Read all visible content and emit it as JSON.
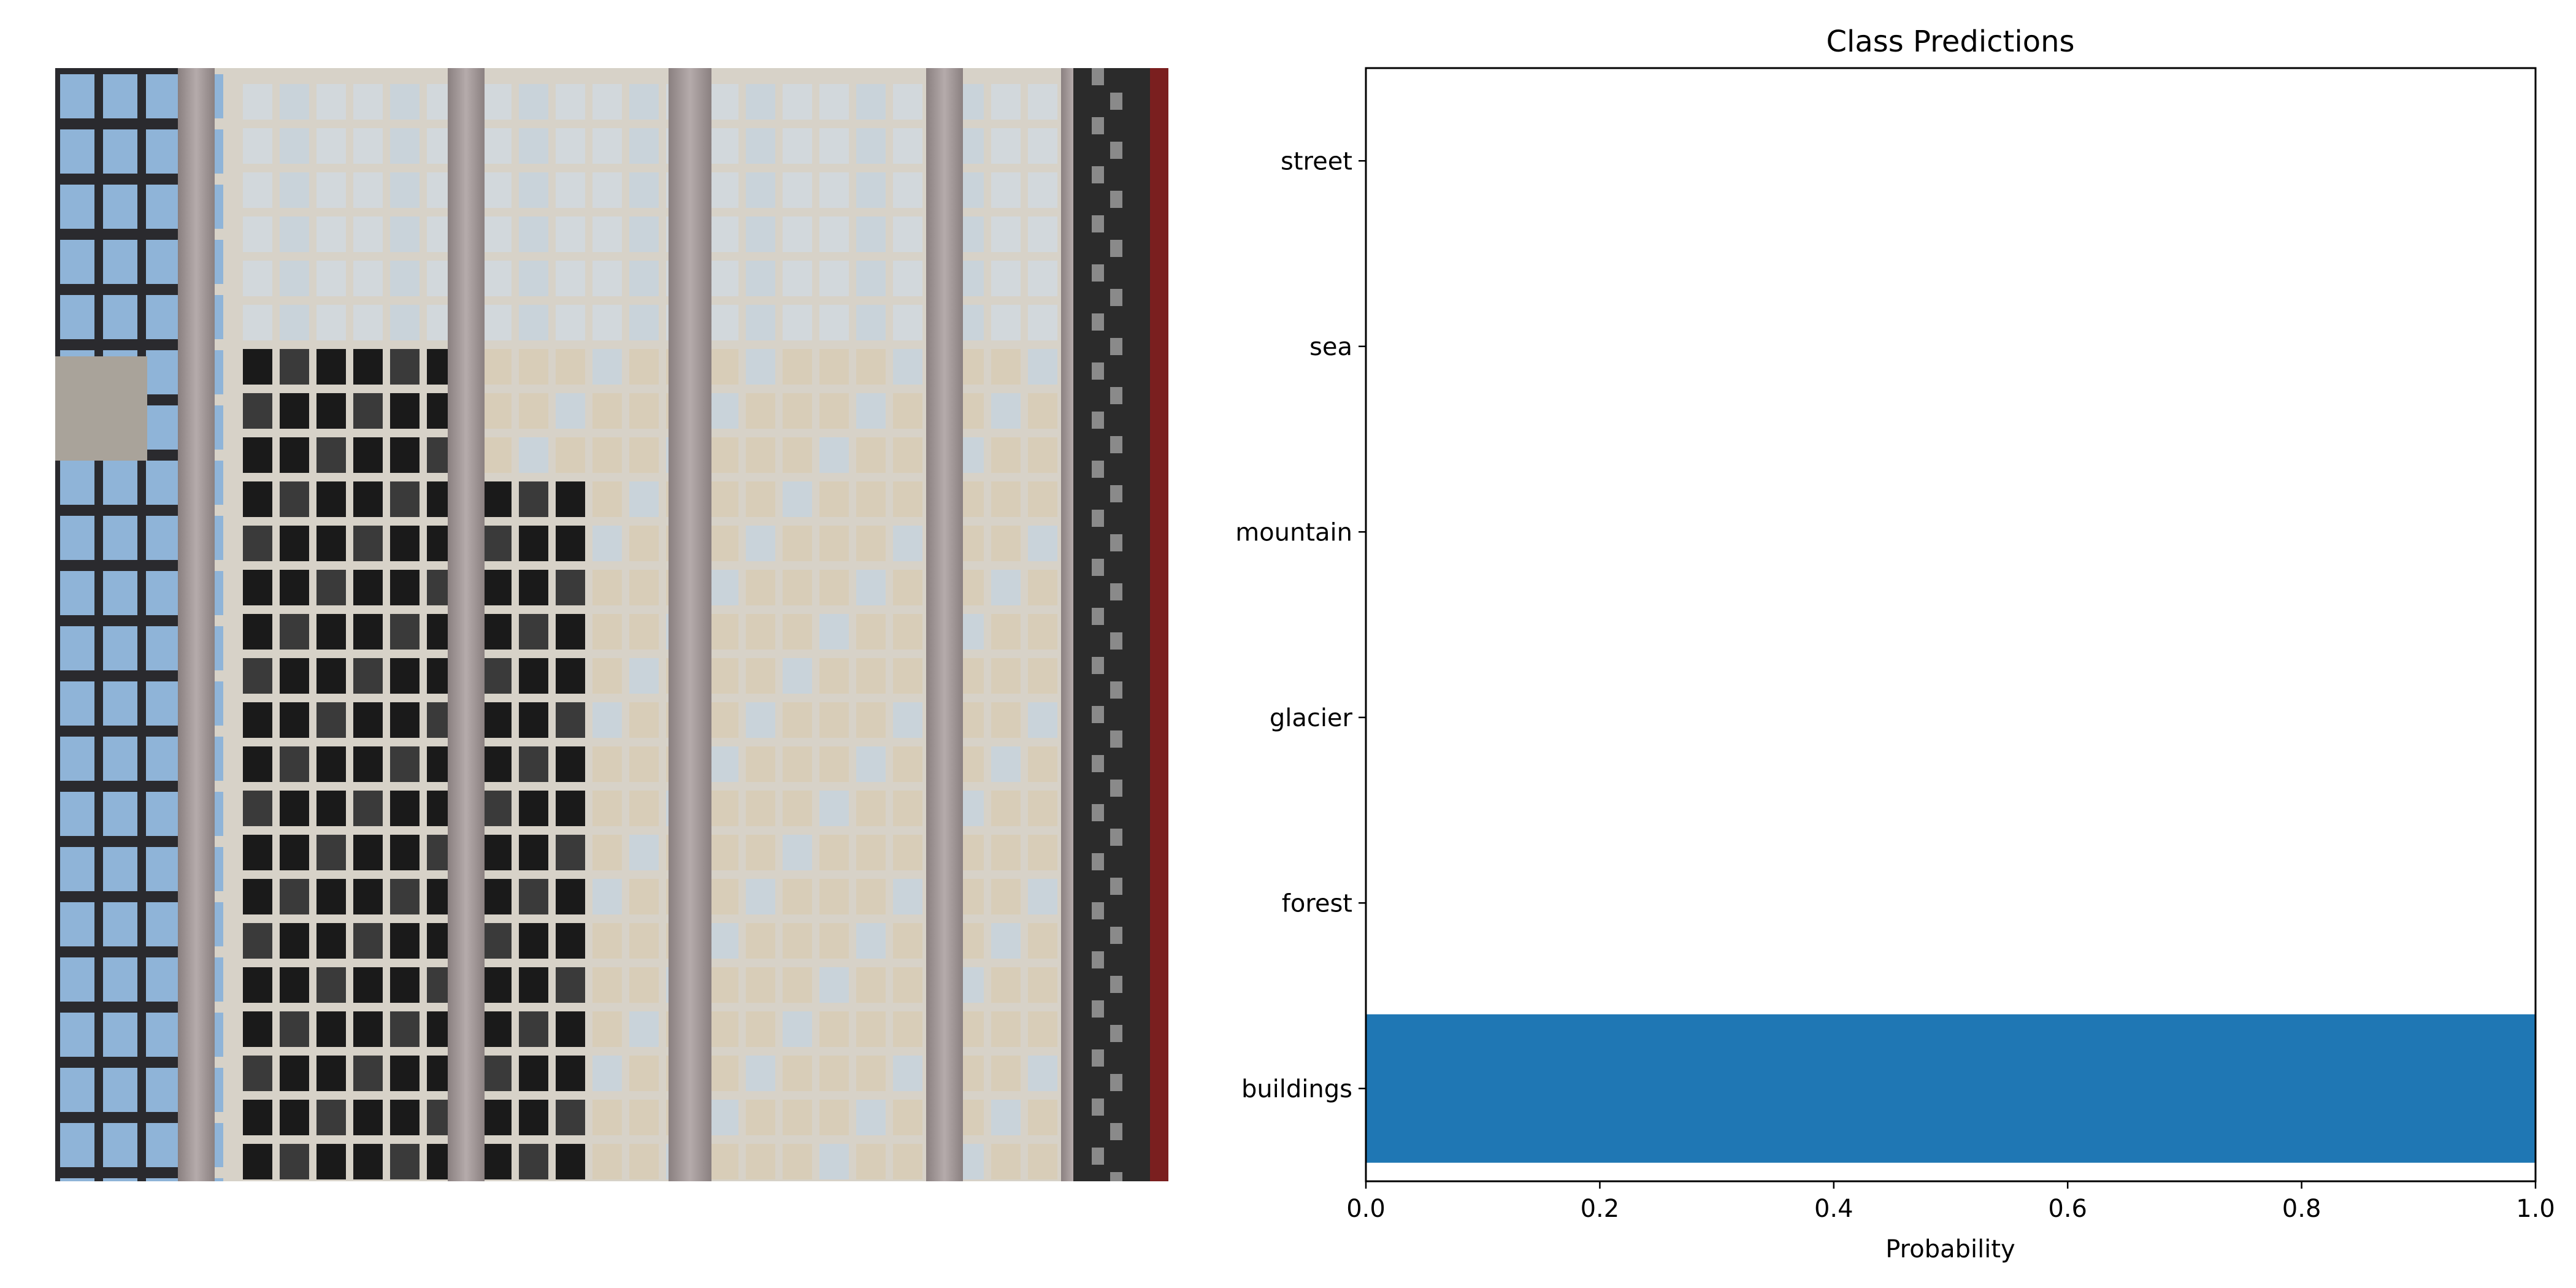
{
  "chart_data": {
    "type": "bar",
    "orientation": "horizontal",
    "title": "Class Predictions",
    "xlabel": "Probability",
    "ylabel": "",
    "xlim": [
      0.0,
      1.0
    ],
    "x_ticks": [
      "0.0",
      "0.2",
      "0.4",
      "0.6",
      "0.8",
      "1.0"
    ],
    "categories": [
      "buildings",
      "forest",
      "glacier",
      "mountain",
      "sea",
      "street"
    ],
    "values": [
      1.0,
      0.0,
      0.0,
      0.0,
      0.0,
      0.0
    ],
    "bar_color": "#1f77b4",
    "grid": false,
    "legend": "none"
  },
  "image_panel": {
    "subject": "building-facade-photo",
    "colors": {
      "glass_light": "#c9d3da",
      "glass_beige": "#d8cdb8",
      "glass_dark": "#1a1a1a",
      "mullion": "#eeeeee",
      "pillar": "#9d9393",
      "sky_blue": "#8fb4d8",
      "edge_red": "#7a1f1f"
    }
  }
}
